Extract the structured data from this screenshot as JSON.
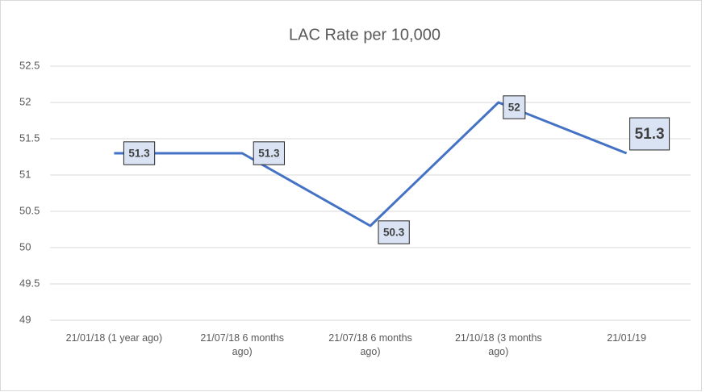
{
  "chart_data": {
    "type": "line",
    "title": "LAC Rate per 10,000",
    "categories": [
      "21/01/18 (1 year ago)",
      "21/07/18 6 months ago)",
      "21/07/18 6 months ago)",
      "21/10/18 (3 months ago)",
      "21/01/19"
    ],
    "series": [
      {
        "name": "LAC Rate per 10,000",
        "color": "#4472c4",
        "values": [
          51.3,
          51.3,
          50.3,
          52,
          51.3
        ]
      }
    ],
    "ylim": [
      49,
      52.5
    ],
    "yticks": [
      49,
      49.5,
      50,
      50.5,
      51,
      51.5,
      52,
      52.5
    ],
    "grid": true
  }
}
